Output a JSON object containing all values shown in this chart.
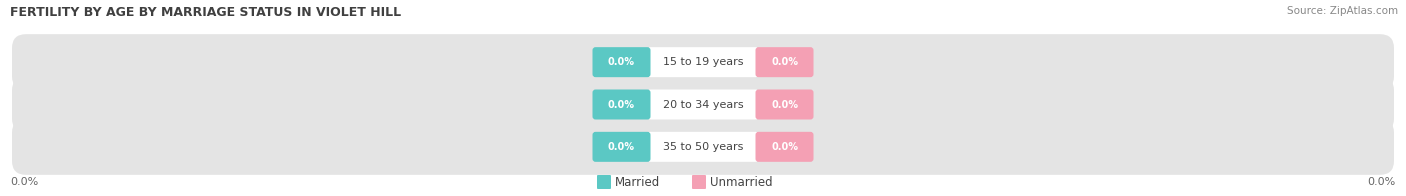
{
  "title": "FERTILITY BY AGE BY MARRIAGE STATUS IN VIOLET HILL",
  "source": "Source: ZipAtlas.com",
  "categories": [
    "15 to 19 years",
    "20 to 34 years",
    "35 to 50 years"
  ],
  "married_values": [
    0.0,
    0.0,
    0.0
  ],
  "unmarried_values": [
    0.0,
    0.0,
    0.0
  ],
  "married_color": "#5BC8C4",
  "unmarried_color": "#F4A0B4",
  "bar_bg_color": "#E4E4E4",
  "title_fontsize": 9,
  "source_fontsize": 7.5,
  "label_fontsize": 8,
  "value_fontsize": 7,
  "axis_label": "0.0%",
  "background_color": "#FFFFFF"
}
